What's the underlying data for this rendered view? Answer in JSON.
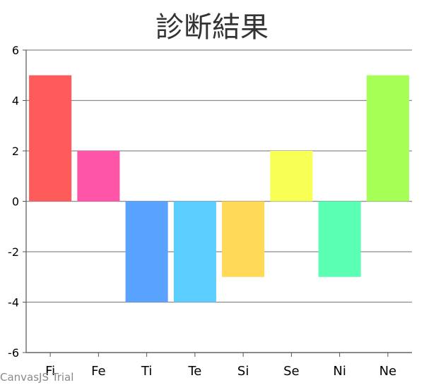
{
  "chart_data": {
    "type": "bar",
    "title": "診断結果",
    "categories": [
      "Fi",
      "Fe",
      "Ti",
      "Te",
      "Si",
      "Se",
      "Ni",
      "Ne"
    ],
    "values": [
      5,
      2,
      -4,
      -4,
      -3,
      2,
      -3,
      5
    ],
    "colors": [
      "#ff5b5b",
      "#ff55a8",
      "#5aa2ff",
      "#5ccdff",
      "#ffd957",
      "#f8ff55",
      "#5affb4",
      "#a5ff55"
    ],
    "ylim": [
      -6,
      6
    ],
    "yticks": [
      -6,
      -4,
      -2,
      0,
      2,
      4,
      6
    ],
    "grid": true,
    "legend": "none"
  },
  "watermark": "CanvasJS Trial"
}
